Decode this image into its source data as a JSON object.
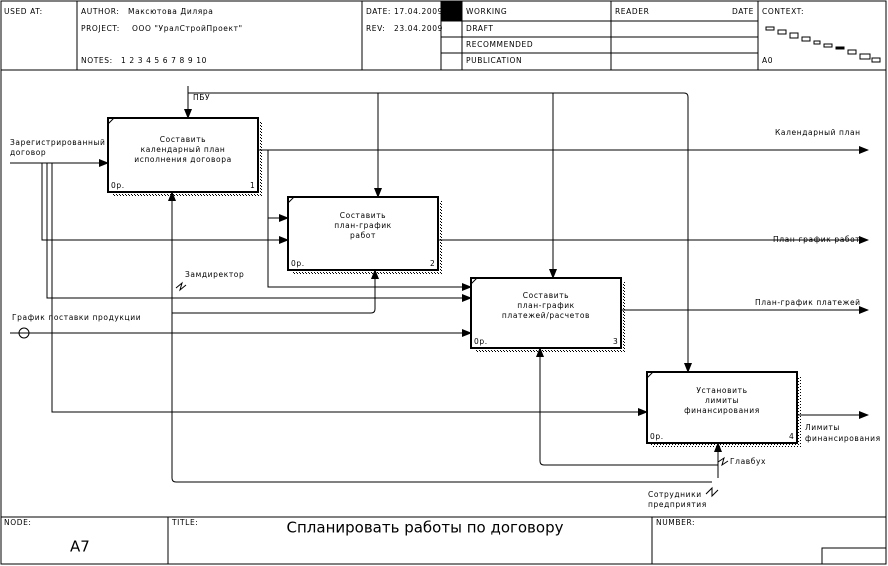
{
  "header": {
    "used_at": "USED AT:",
    "author_label": "AUTHOR:",
    "author": "Максютова Диляра",
    "project_label": "PROJECT:",
    "project": "ООО \"УралСтройПроект\"",
    "notes_label": "NOTES:",
    "notes": "1 2 3 4 5 6 7 8 9 10",
    "date_label": "DATE:",
    "date": "17.04.2009",
    "rev_label": "REV:",
    "rev": "23.04.2009",
    "status": [
      "WORKING",
      "DRAFT",
      "RECOMMENDED",
      "PUBLICATION"
    ],
    "reader": "READER",
    "reader_date": "DATE",
    "context": "CONTEXT:",
    "context_node": "A0"
  },
  "boxes": [
    {
      "lines": [
        "Составить",
        "календарный план",
        "исполнения договора"
      ],
      "cost": "0р.",
      "number": "1"
    },
    {
      "lines": [
        "Составить",
        "план-график",
        "работ"
      ],
      "cost": "0р.",
      "number": "2"
    },
    {
      "lines": [
        "Составить",
        "план-график",
        "платежей/расчетов"
      ],
      "cost": "0р.",
      "number": "3"
    },
    {
      "lines": [
        "Установить",
        "лимиты",
        "финансирования"
      ],
      "cost": "0р.",
      "number": "4"
    }
  ],
  "arrows": [
    {
      "label": [
        "ПБУ"
      ]
    },
    {
      "label": [
        "Зарегистрированный",
        "договор"
      ]
    },
    {
      "label": [
        "Календарный план"
      ]
    },
    {
      "label": [
        "План-график работ"
      ]
    },
    {
      "label": [
        "План-график платежей"
      ]
    },
    {
      "label": [
        "Лимиты",
        "финансирования"
      ]
    },
    {
      "label": [
        "Замдиректор"
      ]
    },
    {
      "label": [
        "График поставки продукции"
      ]
    },
    {
      "label": [
        "Главбух"
      ]
    },
    {
      "label": [
        "Сотрудники",
        "предприятия"
      ]
    }
  ],
  "footer": {
    "node_label": "NODE:",
    "node": "A7",
    "title_label": "TITLE:",
    "title": "Спланировать работы по договору",
    "number_label": "NUMBER:"
  }
}
